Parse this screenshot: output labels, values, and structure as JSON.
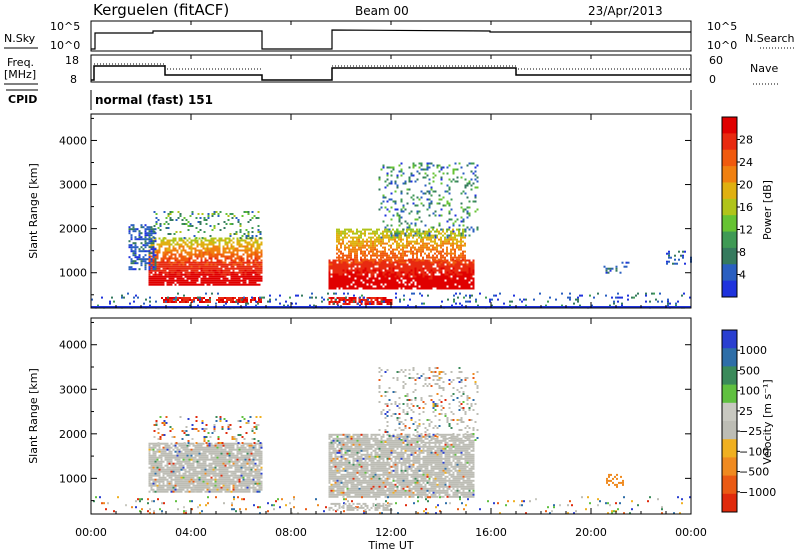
{
  "header": {
    "station": "Kerguelen (fitACF)",
    "beam": "Beam 00",
    "date": "23/Apr/2013"
  },
  "panels": {
    "nsky_label": "N.Sky",
    "nsearch_label": "N.Search",
    "freq_label_1": "Freq.",
    "freq_label_2": "[MHz]",
    "nave_label": "Nave",
    "cpid_label": "CPID",
    "cpid_value": "normal (fast) 151",
    "nsky_ticks": [
      "10^5",
      "10^0"
    ],
    "nsearch_ticks": [
      "10^5",
      "10^0"
    ],
    "freq_ticks": [
      "18",
      "8"
    ],
    "nave_ticks": [
      "60",
      "0"
    ]
  },
  "colors": {
    "power": [
      "#1f33dd",
      "#2a5fc0",
      "#357a5e",
      "#3f9a55",
      "#66c333",
      "#b0c41a",
      "#e0b010",
      "#f08010",
      "#f05a0e",
      "#e82a10",
      "#e00000"
    ],
    "velocity": [
      "#2a3fd0",
      "#2e6ea8",
      "#3a8a5a",
      "#60c040",
      "#c8c8c0",
      "#bdbdb5",
      "#f0b020",
      "#ef8a20",
      "#ea5a14",
      "#e02a0c"
    ]
  },
  "chart_data": [
    {
      "type": "heatmap",
      "name": "power",
      "ylabel": "Slant Range [km]",
      "yticks": [
        "1000",
        "2000",
        "3000",
        "4000"
      ],
      "ylim": [
        200,
        4600
      ],
      "xlim": [
        0,
        24
      ],
      "colorbar_label": "Power [dB]",
      "colorbar_ticks": [
        "4",
        "8",
        "12",
        "16",
        "20",
        "24",
        "28"
      ],
      "data_gaps_hours": [
        [
          6.83,
          9.5
        ]
      ],
      "echo_regions": [
        {
          "t_start": 2.2,
          "t_end": 6.8,
          "range_km": [
            700,
            1800
          ],
          "power_db": "20-30"
        },
        {
          "t_start": 9.5,
          "t_end": 15.2,
          "range_km": [
            600,
            2000
          ],
          "power_db": "18-30"
        },
        {
          "t_start": 11.5,
          "t_end": 15.5,
          "range_km": [
            1600,
            3500
          ],
          "power_db": "4-16"
        }
      ]
    },
    {
      "type": "heatmap",
      "name": "velocity",
      "xlabel": "Time UT",
      "ylabel": "Slant Range [km]",
      "yticks": [
        "1000",
        "2000",
        "3000",
        "4000"
      ],
      "ylim": [
        200,
        4600
      ],
      "xlim": [
        0,
        24
      ],
      "xticks": [
        "00:00",
        "04:00",
        "08:00",
        "12:00",
        "16:00",
        "20:00",
        "00:00"
      ],
      "colorbar_label": "Velocity [m s⁻¹]",
      "colorbar_ticks": [
        "1000",
        "500",
        "100",
        "25",
        "−25",
        "−100",
        "−500",
        "−1000"
      ],
      "ground_scatter_color": "#bdbdb5",
      "echo_regions": [
        {
          "t_start": 2.2,
          "t_end": 6.8,
          "range_km": [
            700,
            1800
          ],
          "velocity_ms": "ground scatter"
        },
        {
          "t_start": 9.5,
          "t_end": 15.2,
          "range_km": [
            600,
            2000
          ],
          "velocity_ms": "ground scatter"
        }
      ]
    }
  ]
}
